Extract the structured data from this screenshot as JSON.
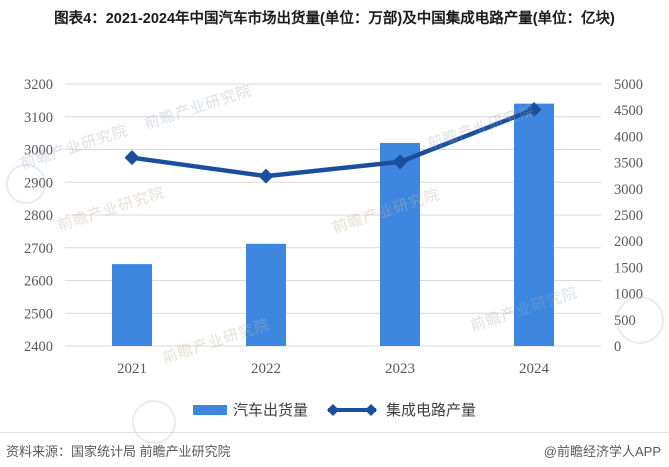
{
  "title": "图表4：2021-2024年中国汽车市场出货量(单位：万部)及中国集成电路产量(单位：亿块)",
  "chart_data": {
    "type": "combo-bar-line",
    "categories": [
      "2021",
      "2022",
      "2023",
      "2024"
    ],
    "series": [
      {
        "name": "汽车出货量",
        "type": "bar",
        "axis": "left",
        "values": [
          2650,
          2712,
          3020,
          3140
        ]
      },
      {
        "name": "集成电路产量",
        "type": "line",
        "axis": "right",
        "marker": "diamond",
        "values": [
          3594,
          3242,
          3514,
          4514
        ]
      }
    ],
    "left_axis": {
      "min": 2400,
      "max": 3200,
      "step": 100,
      "ticks": [
        "3200",
        "3100",
        "3000",
        "2900",
        "2800",
        "2700",
        "2600",
        "2500",
        "2400"
      ]
    },
    "right_axis": {
      "min": 0,
      "max": 5000,
      "step": 500,
      "ticks": [
        "5000",
        "4500",
        "4000",
        "3500",
        "3000",
        "2500",
        "2000",
        "1500",
        "1000",
        "500",
        "0"
      ]
    },
    "grid": true,
    "legend_position": "bottom"
  },
  "footer": {
    "source": "资料来源：国家统计局 前瞻产业研究院",
    "handle": "@前瞻经济学人APP"
  },
  "watermark": {
    "text": "前瞻产业研究院"
  },
  "colors": {
    "bar": "#3d87e1",
    "line": "#1b4f9e",
    "grid": "#d9d9d9",
    "axis_text": "#595959",
    "title_text": "#1a1a1a",
    "footer_text": "#595959"
  }
}
